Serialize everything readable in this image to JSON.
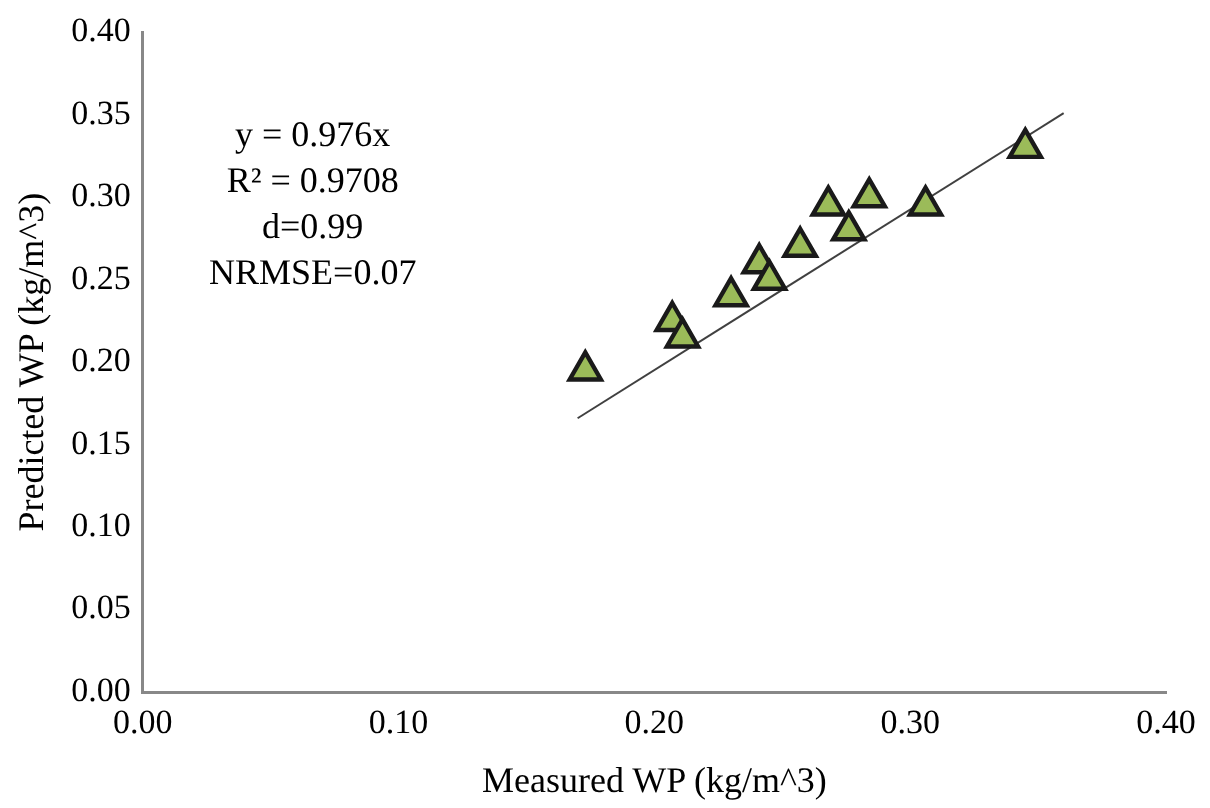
{
  "chart_data": {
    "type": "scatter",
    "xlabel": "Measured WP (kg/m^3)",
    "ylabel": "Predicted WP (kg/m^3)",
    "xlim": [
      0,
      0.4
    ],
    "xticks": [
      {
        "value": 0,
        "label": "0.00"
      },
      {
        "value": 0.1,
        "label": "0.10"
      },
      {
        "value": 0.2,
        "label": "0.20"
      },
      {
        "value": 0.3,
        "label": "0.30"
      },
      {
        "value": 0.4,
        "label": "0.40"
      }
    ],
    "ylim": [
      0,
      0.4
    ],
    "yticks": [
      {
        "value": 0,
        "label": "0.00"
      },
      {
        "value": 0.05,
        "label": "0.05"
      },
      {
        "value": 0.1,
        "label": "0.10"
      },
      {
        "value": 0.15,
        "label": "0.15"
      },
      {
        "value": 0.2,
        "label": "0.20"
      },
      {
        "value": 0.25,
        "label": "0.25"
      },
      {
        "value": 0.3,
        "label": "0.30"
      },
      {
        "value": 0.35,
        "label": "0.35"
      },
      {
        "value": 0.4,
        "label": "0.40"
      }
    ],
    "grid": false,
    "legend": false,
    "marker": "triangle",
    "series": [
      {
        "color": "#9bbb59",
        "x": [
          0.173,
          0.207,
          0.211,
          0.23,
          0.241,
          0.245,
          0.257,
          0.268,
          0.276,
          0.284,
          0.306,
          0.345
        ],
        "values": [
          0.195,
          0.225,
          0.215,
          0.24,
          0.26,
          0.25,
          0.27,
          0.295,
          0.28,
          0.3,
          0.295,
          0.33
        ]
      },
      {
        "type": "line",
        "color": "#404040",
        "marker": "none",
        "x": [
          0.17,
          0.36
        ],
        "values": [
          0.166,
          0.351
        ]
      }
    ],
    "annotations": [
      "y = 0.976x",
      "R² = 0.9708",
      "d=0.99",
      "NRMSE=0.07"
    ]
  }
}
